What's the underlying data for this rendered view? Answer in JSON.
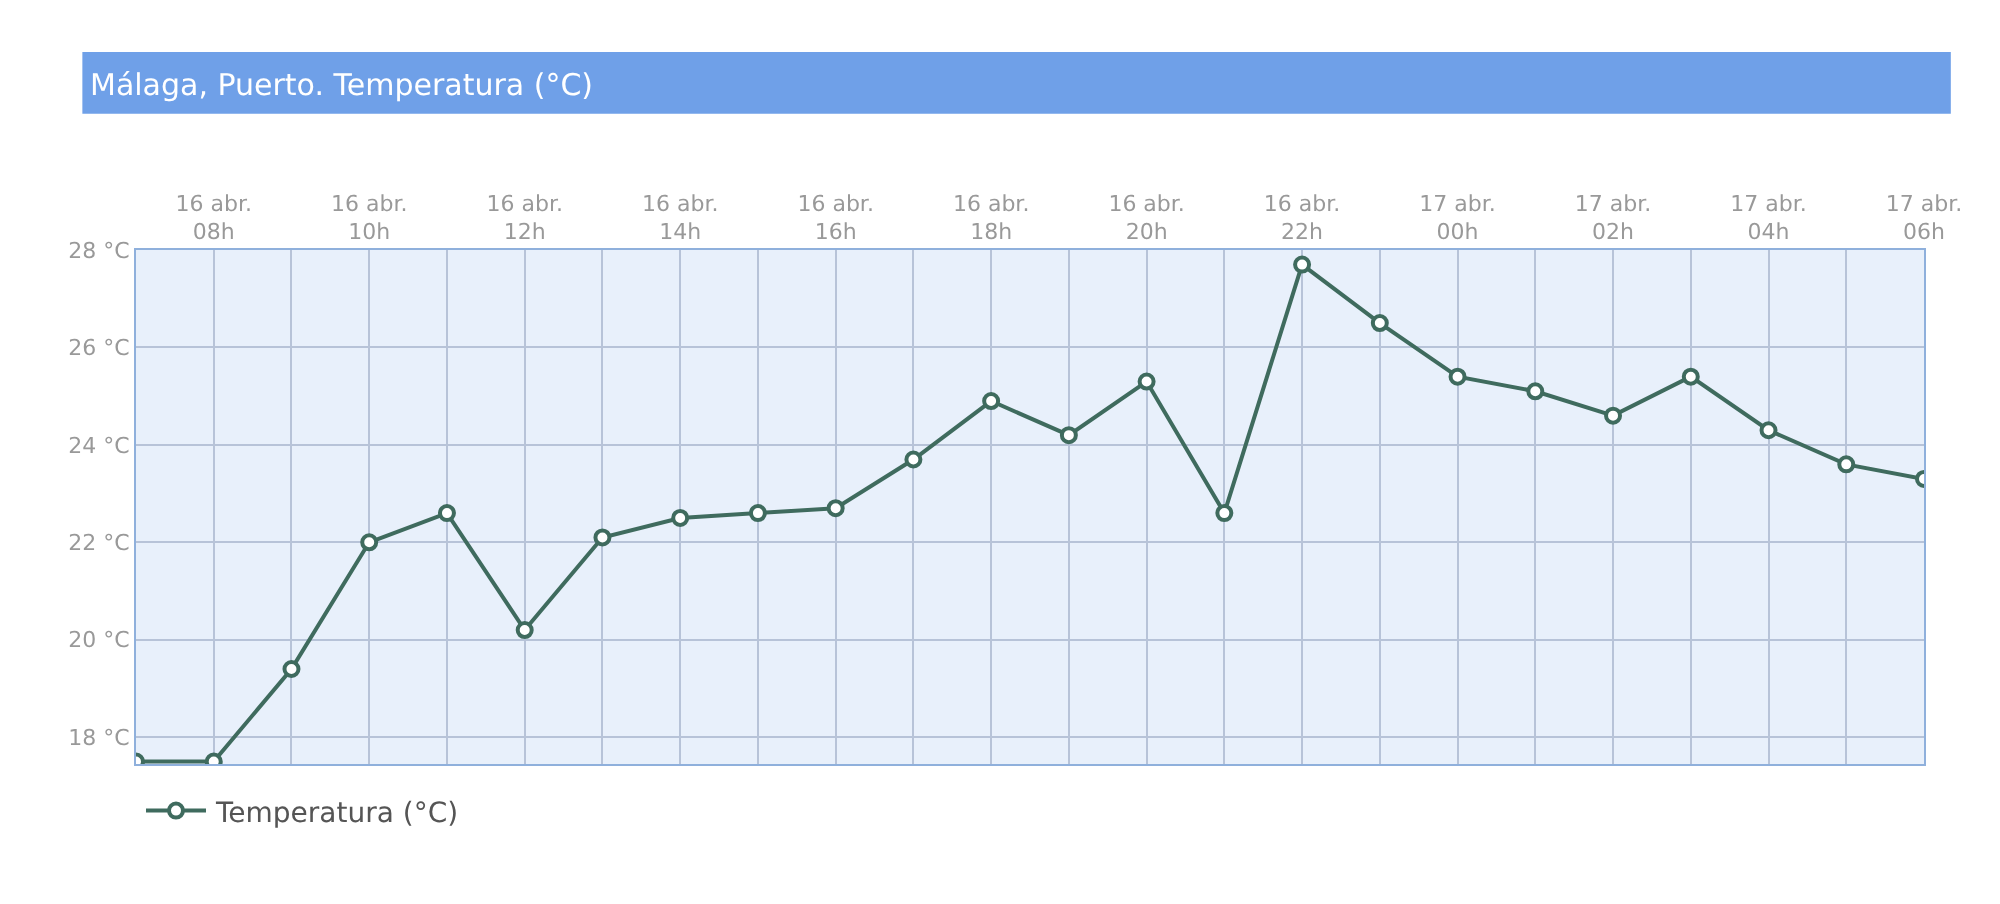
{
  "chart_data": {
    "type": "line",
    "title": "Málaga, Puerto. Temperatura (°C)",
    "categories": [
      null,
      "16 abr.\n08h",
      null,
      "16 abr.\n10h",
      null,
      "16 abr.\n12h",
      null,
      "16 abr.\n14h",
      null,
      "16 abr.\n16h",
      null,
      "16 abr.\n18h",
      null,
      "16 abr.\n20h",
      null,
      "16 abr.\n22h",
      null,
      "17 abr.\n00h",
      null,
      "17 abr.\n02h",
      null,
      "17 abr.\n04h",
      null,
      "17 abr.\n06h"
    ],
    "series": [
      {
        "name": "Temperatura (°C)",
        "color": "#3f6b5e",
        "values": [
          17.5,
          17.5,
          19.4,
          22.0,
          22.6,
          20.2,
          22.1,
          22.5,
          22.6,
          22.7,
          23.7,
          24.9,
          24.2,
          25.3,
          22.6,
          27.7,
          26.5,
          25.4,
          25.1,
          24.6,
          25.4,
          24.3,
          23.6,
          23.3
        ]
      }
    ],
    "ylim": [
      17.45,
      28
    ],
    "yticks": [
      {
        "value": 18,
        "label": "18 °C"
      },
      {
        "value": 20,
        "label": "20 °C"
      },
      {
        "value": 22,
        "label": "22 °C"
      },
      {
        "value": 24,
        "label": "24 °C"
      },
      {
        "value": 26,
        "label": "26 °C"
      },
      {
        "value": 28,
        "label": "28 °C"
      }
    ],
    "grid": true,
    "legend": "bottom left",
    "marker": "circle",
    "line_style": "solid"
  }
}
